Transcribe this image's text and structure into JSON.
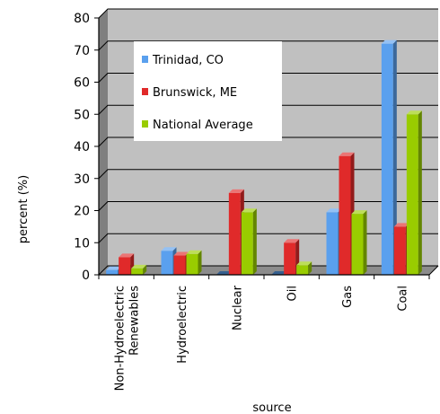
{
  "chart_data": {
    "type": "bar",
    "xlabel": "source",
    "ylabel": "percent (%)",
    "categories": [
      "Non-Hydroelectric Renewables",
      "Hydroelectric",
      "Nuclear",
      "Oil",
      "Gas",
      "Coal"
    ],
    "category_label_lines": [
      [
        "Non-Hydroelectric",
        "Renewables"
      ],
      [
        "Hydroelectric"
      ],
      [
        "Nuclear"
      ],
      [
        "Oil"
      ],
      [
        "Gas"
      ],
      [
        "Coal"
      ]
    ],
    "ylim": [
      0,
      80
    ],
    "yticks": [
      0,
      10,
      20,
      30,
      40,
      50,
      60,
      70,
      80
    ],
    "ytick_labels": [
      "0",
      "10",
      "20",
      "30",
      "40",
      "50",
      "60",
      "70",
      "80"
    ],
    "grid": true,
    "legend_position": "top-left inside plot",
    "series": [
      {
        "name": "Trinidad, CO",
        "color": "#5aa0ee",
        "values": [
          1.5,
          7.5,
          0,
          0,
          19.5,
          72
        ]
      },
      {
        "name": "Brunswick, ME",
        "color": "#e02a2a",
        "values": [
          5.5,
          6,
          25.5,
          10,
          37,
          15
        ]
      },
      {
        "name": "National Average",
        "color": "#99cc00",
        "values": [
          2,
          6.5,
          19.5,
          3,
          19,
          50
        ]
      }
    ]
  }
}
